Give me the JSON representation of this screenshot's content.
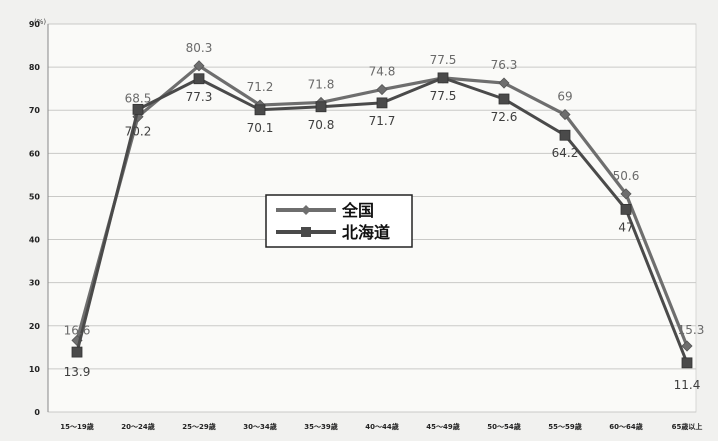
{
  "chart_data": {
    "type": "line",
    "title": "",
    "xlabel": "",
    "ylabel": "",
    "y_unit": "(%)",
    "ylim": [
      0,
      90
    ],
    "yticks": [
      0,
      10,
      20,
      30,
      40,
      50,
      60,
      70,
      80,
      90
    ],
    "grid": true,
    "legend_position": "center",
    "categories": [
      "15～19歳",
      "20～24歳",
      "25～29歳",
      "30～34歳",
      "35～39歳",
      "40～44歳",
      "45～49歳",
      "50～54歳",
      "55～59歳",
      "60～64歳",
      "65歳以上"
    ],
    "series": [
      {
        "name": "全国",
        "color": "#6e6e6e",
        "marker": "diamond",
        "values": [
          16.6,
          68.5,
          80.3,
          71.2,
          71.8,
          74.8,
          77.5,
          76.3,
          69,
          50.6,
          15.3
        ],
        "labels": [
          "16.6",
          "68.5",
          "80.3",
          "71.2",
          "71.8",
          "74.8",
          "77.5",
          "76.3",
          "69",
          "50.6",
          "15.3"
        ]
      },
      {
        "name": "北海道",
        "color": "#4a4a4a",
        "marker": "square",
        "values": [
          13.9,
          70.2,
          77.3,
          70.1,
          70.8,
          71.7,
          77.5,
          72.6,
          64.2,
          47,
          11.4
        ],
        "labels": [
          "13.9",
          "70.2",
          "77.3",
          "70.1",
          "70.8",
          "71.7",
          "77.5",
          "72.6",
          "64.2",
          "47",
          "11.4"
        ]
      }
    ]
  }
}
